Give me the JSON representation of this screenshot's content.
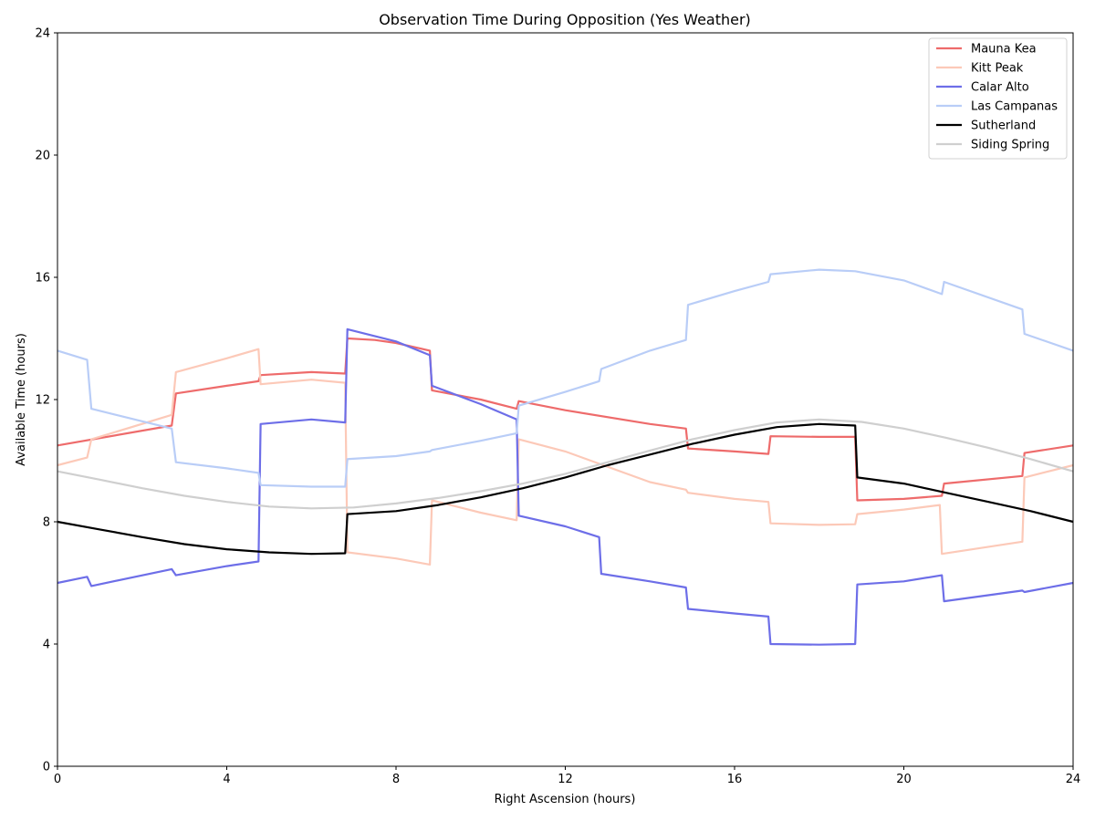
{
  "chart_data": {
    "type": "line",
    "title": "Observation Time During Opposition (Yes Weather)",
    "xlabel": "Right Ascension (hours)",
    "ylabel": "Available Time (hours)",
    "xlim": [
      0,
      24
    ],
    "ylim": [
      0,
      24
    ],
    "xticks": [
      0,
      4,
      8,
      12,
      16,
      20,
      24
    ],
    "yticks": [
      0,
      4,
      8,
      12,
      16,
      20,
      24
    ],
    "grid": false,
    "legend_position": "top-right",
    "series": [
      {
        "name": "Mauna Kea",
        "color": "#ee6b6b",
        "points": [
          [
            0,
            10.5
          ],
          [
            2.7,
            11.15
          ],
          [
            2.8,
            12.2
          ],
          [
            4.0,
            12.45
          ],
          [
            4.75,
            12.6
          ],
          [
            4.8,
            12.8
          ],
          [
            6.0,
            12.9
          ],
          [
            6.8,
            12.85
          ],
          [
            6.85,
            14.0
          ],
          [
            7.5,
            13.95
          ],
          [
            8.0,
            13.85
          ],
          [
            8.8,
            13.6
          ],
          [
            8.85,
            12.3
          ],
          [
            10,
            12.0
          ],
          [
            10.85,
            11.7
          ],
          [
            10.9,
            11.95
          ],
          [
            12,
            11.65
          ],
          [
            14,
            11.2
          ],
          [
            14.85,
            11.05
          ],
          [
            14.9,
            10.4
          ],
          [
            16,
            10.3
          ],
          [
            16.8,
            10.22
          ],
          [
            16.85,
            10.8
          ],
          [
            18,
            10.78
          ],
          [
            18.85,
            10.78
          ],
          [
            18.9,
            8.7
          ],
          [
            20,
            8.75
          ],
          [
            20.9,
            8.85
          ],
          [
            20.95,
            9.25
          ],
          [
            22.8,
            9.5
          ],
          [
            22.85,
            10.25
          ],
          [
            24,
            10.5
          ]
        ]
      },
      {
        "name": "Kitt Peak",
        "color": "#fcc9b8",
        "points": [
          [
            0,
            9.85
          ],
          [
            0.7,
            10.1
          ],
          [
            0.8,
            10.7
          ],
          [
            2.7,
            11.5
          ],
          [
            2.8,
            12.9
          ],
          [
            4.0,
            13.35
          ],
          [
            4.75,
            13.65
          ],
          [
            4.8,
            12.5
          ],
          [
            6.0,
            12.65
          ],
          [
            6.8,
            12.55
          ],
          [
            6.85,
            7.0
          ],
          [
            8.0,
            6.8
          ],
          [
            8.8,
            6.6
          ],
          [
            8.85,
            8.7
          ],
          [
            10,
            8.3
          ],
          [
            10.85,
            8.05
          ],
          [
            10.9,
            10.7
          ],
          [
            12,
            10.3
          ],
          [
            14,
            9.3
          ],
          [
            14.85,
            9.05
          ],
          [
            14.9,
            8.95
          ],
          [
            16,
            8.75
          ],
          [
            16.8,
            8.65
          ],
          [
            16.85,
            7.95
          ],
          [
            18,
            7.9
          ],
          [
            18.85,
            7.92
          ],
          [
            18.9,
            8.25
          ],
          [
            20,
            8.4
          ],
          [
            20.85,
            8.55
          ],
          [
            20.9,
            6.95
          ],
          [
            22.8,
            7.35
          ],
          [
            22.85,
            9.45
          ],
          [
            24,
            9.85
          ]
        ]
      },
      {
        "name": "Calar Alto",
        "color": "#6d6ee8",
        "points": [
          [
            0,
            6.0
          ],
          [
            0.7,
            6.2
          ],
          [
            0.8,
            5.9
          ],
          [
            2.7,
            6.45
          ],
          [
            2.8,
            6.25
          ],
          [
            4.0,
            6.55
          ],
          [
            4.75,
            6.7
          ],
          [
            4.8,
            11.2
          ],
          [
            6.0,
            11.35
          ],
          [
            6.8,
            11.25
          ],
          [
            6.85,
            14.3
          ],
          [
            8.0,
            13.9
          ],
          [
            8.8,
            13.45
          ],
          [
            8.85,
            12.45
          ],
          [
            10,
            11.85
          ],
          [
            10.85,
            11.35
          ],
          [
            10.9,
            8.2
          ],
          [
            12,
            7.85
          ],
          [
            12.8,
            7.5
          ],
          [
            12.85,
            6.3
          ],
          [
            14,
            6.05
          ],
          [
            14.85,
            5.85
          ],
          [
            14.9,
            5.15
          ],
          [
            16,
            5.0
          ],
          [
            16.8,
            4.9
          ],
          [
            16.85,
            4.0
          ],
          [
            18,
            3.98
          ],
          [
            18.85,
            4.0
          ],
          [
            18.9,
            5.95
          ],
          [
            20,
            6.05
          ],
          [
            20.9,
            6.25
          ],
          [
            20.95,
            5.4
          ],
          [
            22.8,
            5.75
          ],
          [
            22.85,
            5.7
          ],
          [
            24,
            6.0
          ]
        ]
      },
      {
        "name": "Las Campanas",
        "color": "#b9cdf7",
        "points": [
          [
            0,
            13.6
          ],
          [
            0.7,
            13.3
          ],
          [
            0.8,
            11.7
          ],
          [
            2.7,
            11.05
          ],
          [
            2.8,
            9.95
          ],
          [
            4.0,
            9.75
          ],
          [
            4.75,
            9.6
          ],
          [
            4.8,
            9.2
          ],
          [
            6.0,
            9.15
          ],
          [
            6.8,
            9.15
          ],
          [
            6.85,
            10.05
          ],
          [
            8.0,
            10.15
          ],
          [
            8.8,
            10.3
          ],
          [
            8.85,
            10.35
          ],
          [
            10,
            10.65
          ],
          [
            10.85,
            10.9
          ],
          [
            10.9,
            11.8
          ],
          [
            12,
            12.25
          ],
          [
            12.8,
            12.6
          ],
          [
            12.85,
            13.0
          ],
          [
            14,
            13.6
          ],
          [
            14.85,
            13.95
          ],
          [
            14.9,
            15.1
          ],
          [
            16,
            15.55
          ],
          [
            16.8,
            15.85
          ],
          [
            16.85,
            16.1
          ],
          [
            18,
            16.25
          ],
          [
            18.85,
            16.2
          ],
          [
            20,
            15.9
          ],
          [
            20.9,
            15.45
          ],
          [
            20.95,
            15.85
          ],
          [
            22.8,
            14.95
          ],
          [
            22.85,
            14.15
          ],
          [
            24,
            13.6
          ]
        ]
      },
      {
        "name": "Sutherland",
        "color": "#000000",
        "points": [
          [
            0,
            8.0
          ],
          [
            1,
            7.75
          ],
          [
            2,
            7.5
          ],
          [
            3,
            7.27
          ],
          [
            4,
            7.1
          ],
          [
            5,
            7.0
          ],
          [
            6,
            6.95
          ],
          [
            6.8,
            6.97
          ],
          [
            6.85,
            8.25
          ],
          [
            8,
            8.35
          ],
          [
            9,
            8.55
          ],
          [
            10,
            8.8
          ],
          [
            11,
            9.1
          ],
          [
            12,
            9.45
          ],
          [
            13,
            9.85
          ],
          [
            14,
            10.2
          ],
          [
            15,
            10.55
          ],
          [
            16,
            10.85
          ],
          [
            17,
            11.1
          ],
          [
            18,
            11.2
          ],
          [
            18.85,
            11.15
          ],
          [
            18.9,
            9.45
          ],
          [
            20,
            9.25
          ],
          [
            21,
            8.95
          ],
          [
            22,
            8.65
          ],
          [
            23,
            8.35
          ],
          [
            24,
            8.0
          ]
        ]
      },
      {
        "name": "Siding Spring",
        "color": "#cfcfcf",
        "points": [
          [
            0,
            9.65
          ],
          [
            1,
            9.38
          ],
          [
            2,
            9.1
          ],
          [
            3,
            8.85
          ],
          [
            4,
            8.65
          ],
          [
            5,
            8.5
          ],
          [
            6,
            8.44
          ],
          [
            7,
            8.47
          ],
          [
            8,
            8.6
          ],
          [
            9,
            8.78
          ],
          [
            10,
            9.0
          ],
          [
            11,
            9.25
          ],
          [
            12,
            9.57
          ],
          [
            13,
            9.95
          ],
          [
            14,
            10.33
          ],
          [
            15,
            10.7
          ],
          [
            16,
            11.0
          ],
          [
            17,
            11.25
          ],
          [
            18,
            11.35
          ],
          [
            19,
            11.27
          ],
          [
            20,
            11.05
          ],
          [
            21,
            10.75
          ],
          [
            22,
            10.42
          ],
          [
            23,
            10.05
          ],
          [
            24,
            9.65
          ]
        ]
      }
    ]
  }
}
